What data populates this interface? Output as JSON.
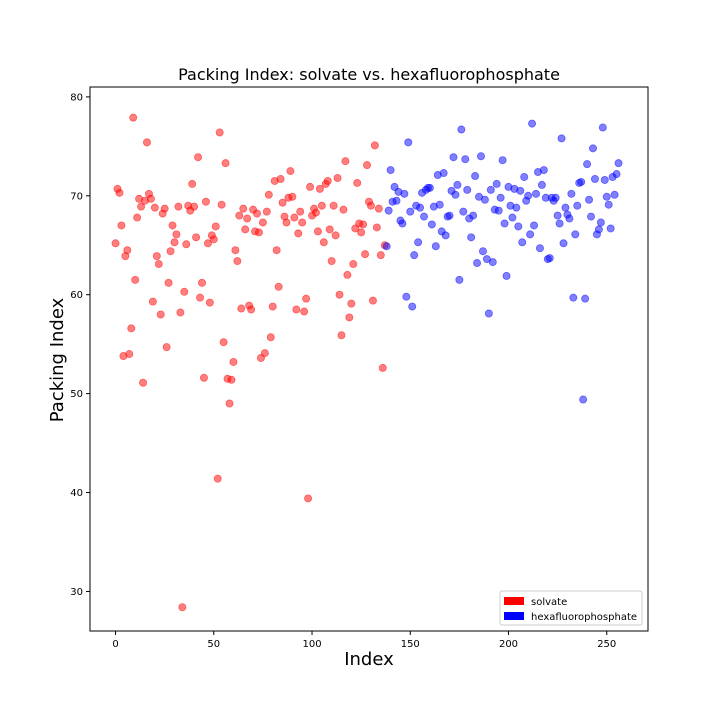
{
  "chart_data": {
    "type": "scatter",
    "title": "Packing Index: solvate vs. hexafluorophosphate",
    "xlabel": "Index",
    "ylabel": "Packing Index",
    "xlim": [
      -13,
      271
    ],
    "ylim": [
      26,
      81
    ],
    "xticks": [
      0,
      50,
      100,
      150,
      200,
      250
    ],
    "yticks": [
      30,
      40,
      50,
      60,
      70,
      80
    ],
    "grid": false,
    "legend_position": "lower-right",
    "marker_alpha": 0.5,
    "series": [
      {
        "name": "solvate",
        "color": "#ff0000",
        "points": [
          [
            0,
            65.2
          ],
          [
            1,
            70.7
          ],
          [
            2,
            70.3
          ],
          [
            3,
            67.0
          ],
          [
            4,
            53.8
          ],
          [
            5,
            63.9
          ],
          [
            6,
            64.5
          ],
          [
            7,
            54.0
          ],
          [
            8,
            56.6
          ],
          [
            9,
            77.9
          ],
          [
            10,
            61.5
          ],
          [
            11,
            67.8
          ],
          [
            12,
            69.7
          ],
          [
            13,
            68.9
          ],
          [
            14,
            51.1
          ],
          [
            15,
            69.5
          ],
          [
            16,
            75.4
          ],
          [
            17,
            70.2
          ],
          [
            18,
            69.7
          ],
          [
            19,
            59.3
          ],
          [
            20,
            68.8
          ],
          [
            21,
            63.9
          ],
          [
            22,
            63.1
          ],
          [
            23,
            58.0
          ],
          [
            24,
            68.2
          ],
          [
            25,
            68.7
          ],
          [
            26,
            54.7
          ],
          [
            27,
            61.2
          ],
          [
            28,
            64.4
          ],
          [
            29,
            67.0
          ],
          [
            30,
            65.3
          ],
          [
            31,
            66.1
          ],
          [
            32,
            68.9
          ],
          [
            33,
            58.2
          ],
          [
            34,
            28.4
          ],
          [
            35,
            60.3
          ],
          [
            36,
            65.1
          ],
          [
            37,
            69.0
          ],
          [
            38,
            68.5
          ],
          [
            39,
            71.2
          ],
          [
            40,
            68.9
          ],
          [
            41,
            65.8
          ],
          [
            42,
            73.9
          ],
          [
            43,
            59.7
          ],
          [
            44,
            61.2
          ],
          [
            45,
            51.6
          ],
          [
            46,
            69.4
          ],
          [
            47,
            65.2
          ],
          [
            48,
            59.2
          ],
          [
            49,
            66.0
          ],
          [
            50,
            65.6
          ],
          [
            51,
            66.9
          ],
          [
            52,
            41.4
          ],
          [
            53,
            76.4
          ],
          [
            54,
            69.1
          ],
          [
            55,
            55.2
          ],
          [
            56,
            73.3
          ],
          [
            57,
            51.5
          ],
          [
            58,
            49.0
          ],
          [
            59,
            51.4
          ],
          [
            60,
            53.2
          ],
          [
            61,
            64.5
          ],
          [
            62,
            63.4
          ],
          [
            63,
            68.0
          ],
          [
            64,
            58.6
          ],
          [
            65,
            68.7
          ],
          [
            66,
            66.6
          ],
          [
            67,
            67.7
          ],
          [
            68,
            58.9
          ],
          [
            69,
            58.5
          ],
          [
            70,
            68.6
          ],
          [
            71,
            66.4
          ],
          [
            72,
            68.2
          ],
          [
            73,
            66.3
          ],
          [
            74,
            53.6
          ],
          [
            75,
            67.3
          ],
          [
            76,
            54.1
          ],
          [
            77,
            68.4
          ],
          [
            78,
            70.1
          ],
          [
            79,
            55.7
          ],
          [
            80,
            58.8
          ],
          [
            81,
            71.5
          ],
          [
            82,
            64.5
          ],
          [
            83,
            60.8
          ],
          [
            84,
            71.7
          ],
          [
            85,
            69.3
          ],
          [
            86,
            67.9
          ],
          [
            87,
            67.3
          ],
          [
            88,
            69.8
          ],
          [
            89,
            72.5
          ],
          [
            90,
            69.9
          ],
          [
            91,
            67.8
          ],
          [
            92,
            58.5
          ],
          [
            93,
            66.2
          ],
          [
            94,
            68.4
          ],
          [
            95,
            67.3
          ],
          [
            96,
            58.3
          ],
          [
            97,
            59.6
          ],
          [
            98,
            39.4
          ],
          [
            99,
            70.9
          ],
          [
            100,
            68.0
          ],
          [
            101,
            68.7
          ],
          [
            102,
            68.3
          ],
          [
            103,
            66.4
          ],
          [
            104,
            70.7
          ],
          [
            105,
            69.0
          ],
          [
            106,
            65.3
          ],
          [
            107,
            71.2
          ],
          [
            108,
            71.5
          ],
          [
            109,
            66.6
          ],
          [
            110,
            63.4
          ],
          [
            111,
            69.0
          ],
          [
            112,
            66.0
          ],
          [
            113,
            71.8
          ],
          [
            114,
            60.0
          ],
          [
            115,
            55.9
          ],
          [
            116,
            68.6
          ],
          [
            117,
            73.5
          ],
          [
            118,
            62.0
          ],
          [
            119,
            57.7
          ],
          [
            120,
            59.1
          ],
          [
            121,
            63.1
          ],
          [
            122,
            66.7
          ],
          [
            123,
            71.3
          ],
          [
            124,
            67.2
          ],
          [
            125,
            66.3
          ],
          [
            126,
            67.1
          ],
          [
            127,
            64.1
          ],
          [
            128,
            73.1
          ],
          [
            129,
            69.4
          ],
          [
            130,
            69.0
          ],
          [
            131,
            59.4
          ],
          [
            132,
            75.1
          ],
          [
            133,
            66.8
          ],
          [
            134,
            68.7
          ],
          [
            135,
            64.0
          ],
          [
            136,
            52.6
          ],
          [
            137,
            65.0
          ]
        ]
      },
      {
        "name": "hexafluorophosphate",
        "color": "#0000ff",
        "points": [
          [
            138,
            64.9
          ],
          [
            139,
            68.5
          ],
          [
            140,
            72.6
          ],
          [
            141,
            69.4
          ],
          [
            142,
            70.9
          ],
          [
            143,
            69.5
          ],
          [
            144,
            70.4
          ],
          [
            145,
            67.5
          ],
          [
            146,
            67.2
          ],
          [
            147,
            70.2
          ],
          [
            148,
            59.8
          ],
          [
            149,
            75.4
          ],
          [
            150,
            68.4
          ],
          [
            151,
            58.8
          ],
          [
            152,
            64.0
          ],
          [
            153,
            69.0
          ],
          [
            154,
            65.3
          ],
          [
            155,
            68.8
          ],
          [
            156,
            70.3
          ],
          [
            157,
            67.9
          ],
          [
            158,
            70.6
          ],
          [
            159,
            70.8
          ],
          [
            160,
            70.8
          ],
          [
            161,
            67.1
          ],
          [
            162,
            68.9
          ],
          [
            163,
            64.9
          ],
          [
            164,
            72.1
          ],
          [
            165,
            69.1
          ],
          [
            166,
            66.4
          ],
          [
            167,
            72.3
          ],
          [
            168,
            66.0
          ],
          [
            169,
            67.9
          ],
          [
            170,
            68.0
          ],
          [
            171,
            70.5
          ],
          [
            172,
            73.9
          ],
          [
            173,
            70.1
          ],
          [
            174,
            71.1
          ],
          [
            175,
            61.5
          ],
          [
            176,
            76.7
          ],
          [
            177,
            68.4
          ],
          [
            178,
            73.7
          ],
          [
            179,
            70.6
          ],
          [
            180,
            67.7
          ],
          [
            181,
            65.8
          ],
          [
            182,
            68.0
          ],
          [
            183,
            72.0
          ],
          [
            184,
            63.2
          ],
          [
            185,
            69.9
          ],
          [
            186,
            74.0
          ],
          [
            187,
            64.4
          ],
          [
            188,
            69.6
          ],
          [
            189,
            63.6
          ],
          [
            190,
            58.1
          ],
          [
            191,
            70.6
          ],
          [
            192,
            63.3
          ],
          [
            193,
            68.6
          ],
          [
            194,
            71.2
          ],
          [
            195,
            68.5
          ],
          [
            196,
            69.8
          ],
          [
            197,
            73.6
          ],
          [
            198,
            67.2
          ],
          [
            199,
            61.9
          ],
          [
            200,
            70.9
          ],
          [
            201,
            69.0
          ],
          [
            202,
            67.8
          ],
          [
            203,
            70.7
          ],
          [
            204,
            68.8
          ],
          [
            205,
            66.9
          ],
          [
            206,
            70.5
          ],
          [
            207,
            65.3
          ],
          [
            208,
            71.9
          ],
          [
            209,
            69.5
          ],
          [
            210,
            70.0
          ],
          [
            211,
            66.1
          ],
          [
            212,
            77.3
          ],
          [
            213,
            67.0
          ],
          [
            214,
            70.2
          ],
          [
            215,
            72.4
          ],
          [
            216,
            64.7
          ],
          [
            217,
            71.1
          ],
          [
            218,
            72.6
          ],
          [
            219,
            69.8
          ],
          [
            220,
            63.6
          ],
          [
            221,
            63.7
          ],
          [
            222,
            69.8
          ],
          [
            223,
            69.5
          ],
          [
            224,
            69.8
          ],
          [
            225,
            68.0
          ],
          [
            226,
            67.2
          ],
          [
            227,
            75.8
          ],
          [
            228,
            65.2
          ],
          [
            229,
            68.8
          ],
          [
            230,
            68.1
          ],
          [
            231,
            67.7
          ],
          [
            232,
            70.2
          ],
          [
            233,
            59.7
          ],
          [
            234,
            66.1
          ],
          [
            235,
            69.0
          ],
          [
            236,
            71.3
          ],
          [
            237,
            71.4
          ],
          [
            238,
            49.4
          ],
          [
            239,
            59.6
          ],
          [
            240,
            73.2
          ],
          [
            241,
            69.6
          ],
          [
            242,
            67.9
          ],
          [
            243,
            74.8
          ],
          [
            244,
            71.7
          ],
          [
            245,
            66.1
          ],
          [
            246,
            66.6
          ],
          [
            247,
            67.3
          ],
          [
            248,
            76.9
          ],
          [
            249,
            71.6
          ],
          [
            250,
            69.9
          ],
          [
            251,
            69.1
          ],
          [
            252,
            66.7
          ],
          [
            253,
            71.9
          ],
          [
            254,
            70.1
          ],
          [
            255,
            72.2
          ],
          [
            256,
            73.3
          ]
        ]
      }
    ]
  }
}
